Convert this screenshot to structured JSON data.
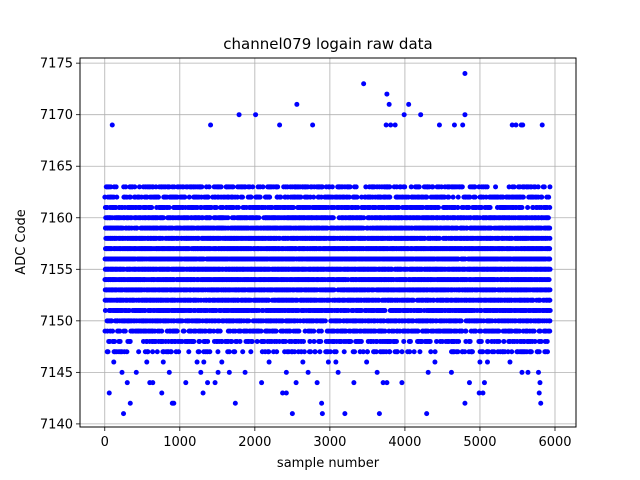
{
  "chart_data": {
    "type": "scatter",
    "title": "channel079 logain raw data",
    "xlabel": "sample number",
    "ylabel": "ADC Code",
    "xlim": [
      -330,
      6280
    ],
    "ylim": [
      7139.7,
      7175.5
    ],
    "xticks": [
      0,
      1000,
      2000,
      3000,
      4000,
      5000,
      6000
    ],
    "yticks": [
      7140,
      7145,
      7150,
      7155,
      7160,
      7165,
      7170,
      7175
    ],
    "grid": true,
    "marker_color": "#0000ff",
    "n_samples": 5930,
    "dense_band": [
      7147,
      7163
    ],
    "series": [
      {
        "points": [
          [
            250,
            7141
          ],
          [
            2500,
            7141
          ],
          [
            2900,
            7141
          ],
          [
            3200,
            7141
          ],
          [
            3660,
            7141
          ],
          [
            4290,
            7141
          ],
          [
            340,
            7142
          ],
          [
            900,
            7142
          ],
          [
            920,
            7142
          ],
          [
            1740,
            7142
          ],
          [
            2890,
            7142
          ],
          [
            4800,
            7142
          ],
          [
            5810,
            7142
          ],
          [
            60,
            7143
          ],
          [
            760,
            7143
          ],
          [
            1310,
            7143
          ],
          [
            2370,
            7143
          ],
          [
            2420,
            7143
          ],
          [
            4990,
            7143
          ],
          [
            5040,
            7143
          ],
          [
            5790,
            7143
          ],
          [
            300,
            7144
          ],
          [
            600,
            7144
          ],
          [
            640,
            7144
          ],
          [
            1080,
            7144
          ],
          [
            1370,
            7144
          ],
          [
            1470,
            7144
          ],
          [
            2090,
            7144
          ],
          [
            2550,
            7144
          ],
          [
            2830,
            7144
          ],
          [
            3320,
            7144
          ],
          [
            3710,
            7144
          ],
          [
            3760,
            7144
          ],
          [
            3960,
            7144
          ],
          [
            4860,
            7144
          ],
          [
            5060,
            7144
          ],
          [
            5800,
            7144
          ],
          [
            230,
            7145
          ],
          [
            420,
            7145
          ],
          [
            860,
            7145
          ],
          [
            1280,
            7145
          ],
          [
            1510,
            7145
          ],
          [
            1660,
            7145
          ],
          [
            1870,
            7145
          ],
          [
            2420,
            7145
          ],
          [
            2710,
            7145
          ],
          [
            3110,
            7145
          ],
          [
            3630,
            7145
          ],
          [
            4310,
            7145
          ],
          [
            4620,
            7145
          ],
          [
            5560,
            7145
          ],
          [
            5640,
            7145
          ],
          [
            5780,
            7145
          ],
          [
            120,
            7146
          ],
          [
            560,
            7146
          ],
          [
            780,
            7146
          ],
          [
            1230,
            7146
          ],
          [
            1320,
            7146
          ],
          [
            1560,
            7146
          ],
          [
            2190,
            7146
          ],
          [
            2640,
            7146
          ],
          [
            2980,
            7146
          ],
          [
            3080,
            7146
          ],
          [
            3490,
            7146
          ],
          [
            4400,
            7146
          ],
          [
            5000,
            7146
          ],
          [
            5100,
            7146
          ],
          [
            5400,
            7146
          ],
          [
            160,
            7147
          ],
          [
            700,
            7147
          ],
          [
            1400,
            7147
          ],
          [
            2100,
            7147
          ],
          [
            2800,
            7147
          ],
          [
            3500,
            7147
          ],
          [
            4200,
            7147
          ],
          [
            4900,
            7147
          ],
          [
            5600,
            7147
          ],
          [
            5900,
            7147
          ],
          [
            100,
            7169
          ],
          [
            1410,
            7169
          ],
          [
            2330,
            7169
          ],
          [
            2770,
            7169
          ],
          [
            3750,
            7169
          ],
          [
            3810,
            7169
          ],
          [
            3870,
            7169
          ],
          [
            4460,
            7169
          ],
          [
            4660,
            7169
          ],
          [
            4770,
            7169
          ],
          [
            5430,
            7169
          ],
          [
            5480,
            7169
          ],
          [
            5550,
            7169
          ],
          [
            5570,
            7169
          ],
          [
            5830,
            7169
          ],
          [
            1790,
            7170
          ],
          [
            2010,
            7170
          ],
          [
            4800,
            7170
          ],
          [
            3990,
            7170
          ],
          [
            4210,
            7170
          ],
          [
            3790,
            7171
          ],
          [
            4050,
            7171
          ],
          [
            2560,
            7171
          ],
          [
            3760,
            7172
          ],
          [
            3450,
            7173
          ],
          [
            4800,
            7174
          ]
        ]
      }
    ]
  }
}
